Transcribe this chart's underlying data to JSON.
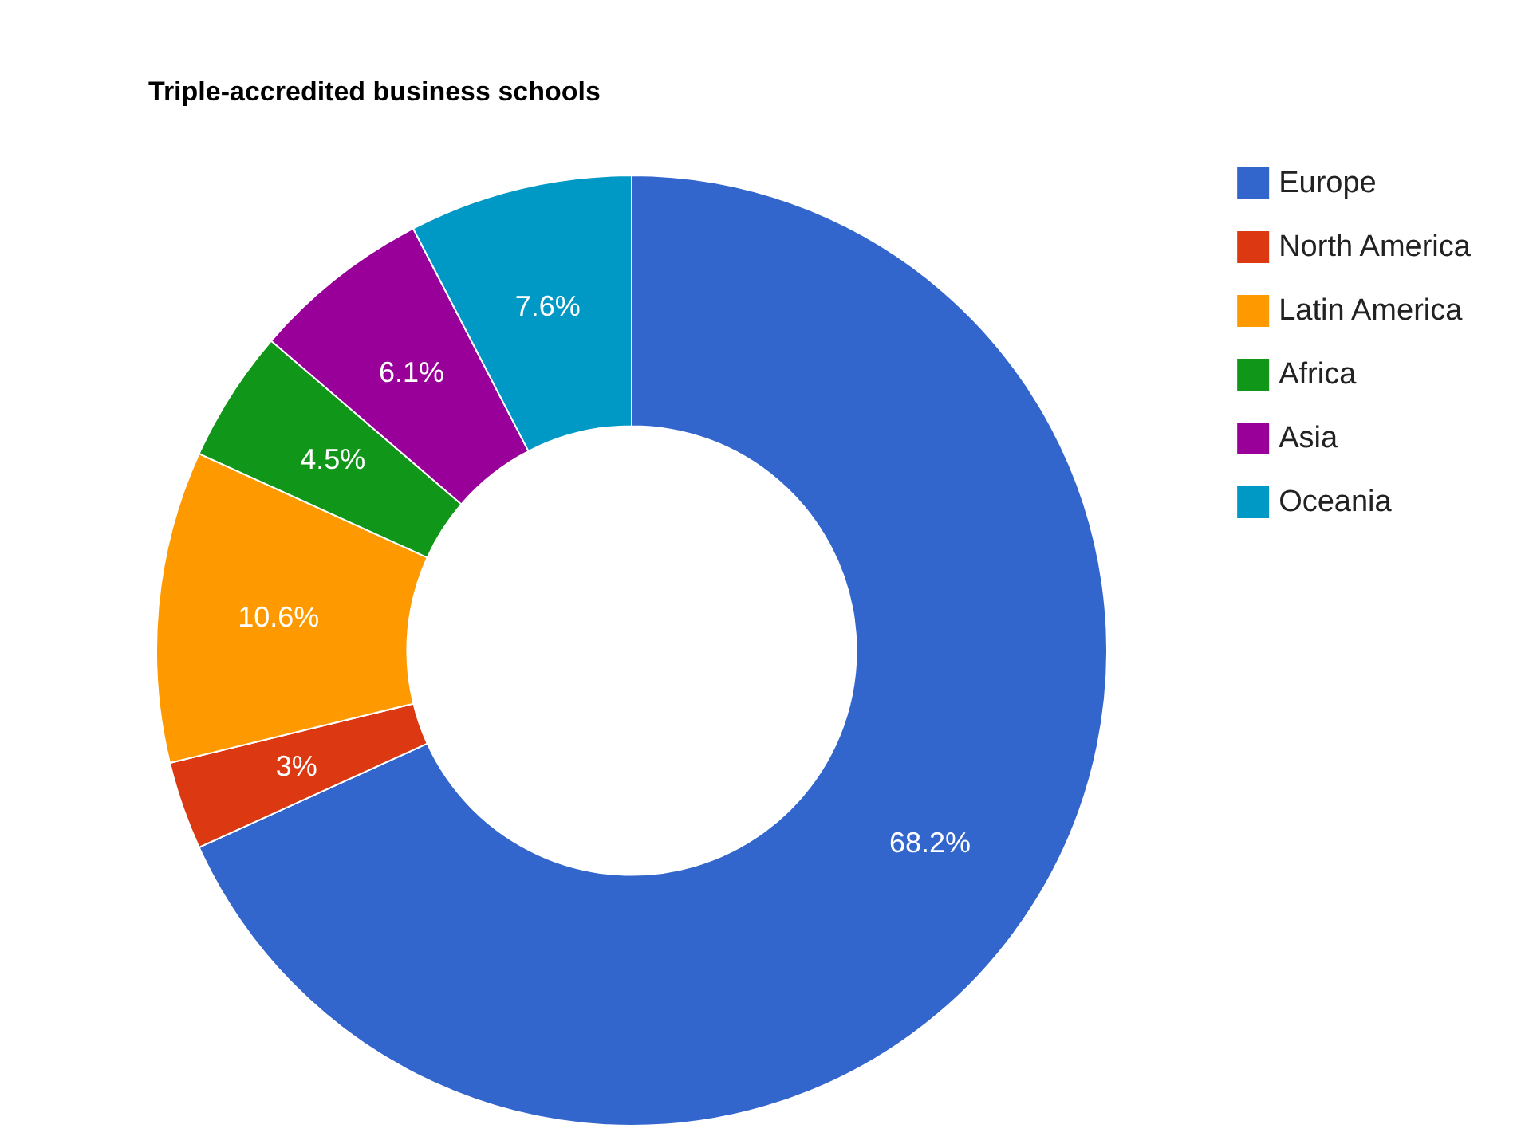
{
  "chart_data": {
    "type": "donut",
    "title": "Triple-accredited business schools",
    "categories": [
      "Europe",
      "North America",
      "Latin America",
      "Africa",
      "Asia",
      "Oceania"
    ],
    "values": [
      68.2,
      3,
      10.6,
      4.5,
      6.1,
      7.6
    ],
    "colors": [
      "#3366cc",
      "#dc3912",
      "#ff9900",
      "#109618",
      "#990099",
      "#0099c6"
    ],
    "value_labels": [
      "68.2%",
      "3%",
      "10.6%",
      "4.5%",
      "6.1%",
      "7.6%"
    ],
    "legend": "top right"
  }
}
